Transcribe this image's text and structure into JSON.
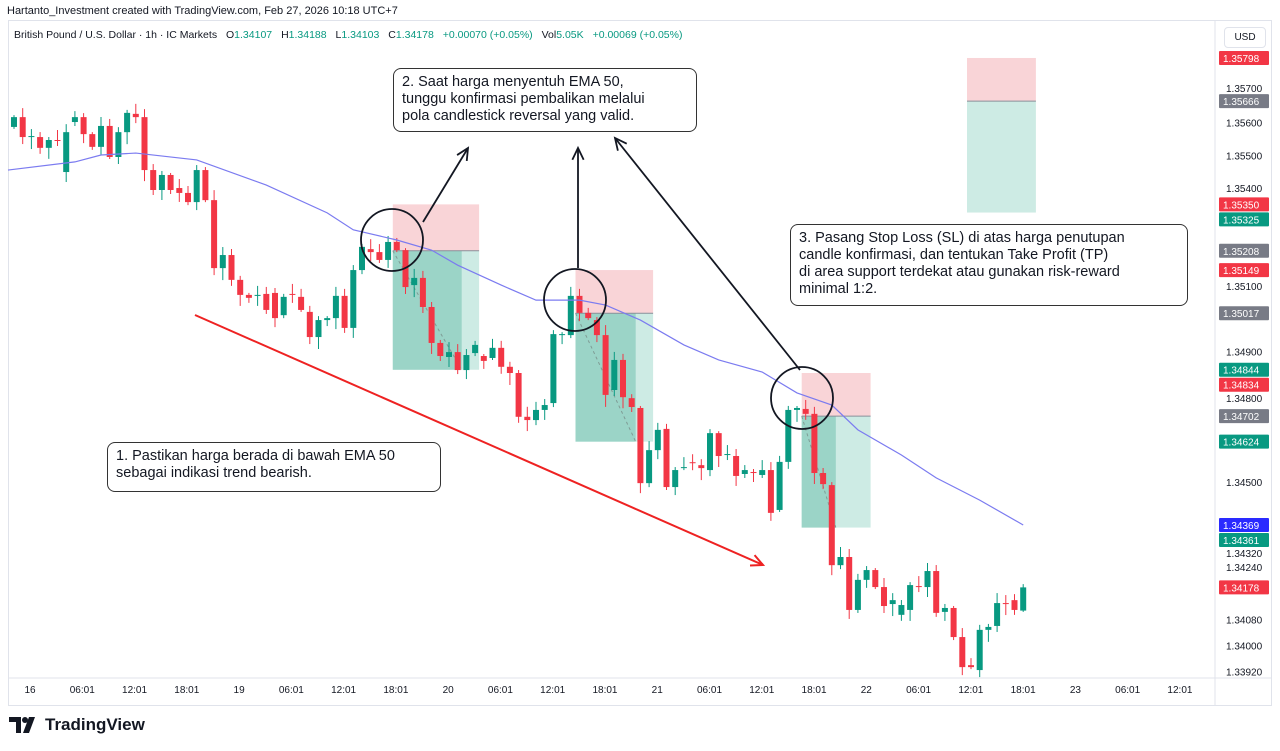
{
  "credit": "Hartanto_Investment created with TradingView.com, Feb 27, 2026 10:18 UTC+7",
  "legend": {
    "symbol": "British Pound / U.S. Dollar · 1h · IC Markets",
    "o_label": "O",
    "o": "1.34107",
    "h_label": "H",
    "h": "1.34188",
    "l_label": "L",
    "l": "1.34103",
    "c_label": "C",
    "c": "1.34178",
    "change": "+0.00070 (+0.05%)",
    "vol_label": "Vol",
    "vol": "5.05K",
    "vol_change": "+0.00069 (+0.05%)"
  },
  "currency": "USD",
  "logo": "TradingView",
  "callouts": {
    "step1": [
      "1. Pastikan harga berada di bawah EMA 50",
      "sebagai indikasi trend bearish."
    ],
    "step2": [
      "2. Saat harga menyentuh EMA 50,",
      "tunggu konfirmasi pembalikan melalui",
      "pola candlestick reversal yang valid."
    ],
    "step3": [
      "3. Pasang Stop Loss (SL) di atas harga penutupan",
      "candle konfirmasi, dan tentukan Take Profit (TP)",
      "di area support terdekat atau gunakan risk-reward",
      "minimal 1:2."
    ]
  },
  "colors": {
    "up": "#089981",
    "down": "#f23645",
    "ema": "#7b7bf0",
    "trend": "#ee2222",
    "sl_zone": "#f9d4d7",
    "tp_zone": "#cdebe4",
    "tp_zone_dark": "#9bd4c7",
    "ema_badge": "#2a2aff",
    "entry_badge": "#787b86"
  },
  "chart_data": {
    "type": "candlestick",
    "timeframe": "1h",
    "x_tick_labels": [
      "16",
      "06:01",
      "12:01",
      "18:01",
      "19",
      "06:01",
      "12:01",
      "18:01",
      "20",
      "06:01",
      "12:01",
      "18:01",
      "21",
      "06:01",
      "12:01",
      "18:01",
      "22",
      "06:01",
      "12:01",
      "18:01",
      "23",
      "06:01",
      "12:01"
    ],
    "y_tick_labels": [
      "1.35700",
      "1.35600",
      "1.35500",
      "1.35400",
      "1.35100",
      "1.34900",
      "1.34800",
      "1.34500",
      "1.34320",
      "1.34240",
      "1.34080",
      "1.34000",
      "1.33920"
    ],
    "candles_open_close": [
      [
        1.35587,
        1.35617
      ],
      [
        1.35617,
        1.35556
      ],
      [
        1.35556,
        1.35559
      ],
      [
        1.35556,
        1.35523
      ],
      [
        1.35523,
        1.35547
      ],
      [
        1.35547,
        1.35544
      ],
      [
        1.35449,
        1.35571
      ],
      [
        1.35602,
        1.35617
      ],
      [
        1.35617,
        1.35565
      ],
      [
        1.35565,
        1.35526
      ],
      [
        1.35526,
        1.3559
      ],
      [
        1.3559,
        1.35495
      ],
      [
        1.35495,
        1.35571
      ],
      [
        1.35571,
        1.3563
      ],
      [
        1.35627,
        1.35617
      ],
      [
        1.35617,
        1.35455
      ],
      [
        1.35455,
        1.35394
      ],
      [
        1.35394,
        1.3544
      ],
      [
        1.3544,
        1.35394
      ],
      [
        1.354,
        1.35385
      ],
      [
        1.35385,
        1.35357
      ],
      [
        1.35357,
        1.35455
      ],
      [
        1.35455,
        1.35363
      ],
      [
        1.35363,
        1.35155
      ],
      [
        1.35155,
        1.35195
      ],
      [
        1.35195,
        1.35119
      ],
      [
        1.35119,
        1.35073
      ],
      [
        1.35073,
        1.35064
      ],
      [
        1.3507,
        1.35073
      ],
      [
        1.35076,
        1.35027
      ],
      [
        1.35079,
        1.35002
      ],
      [
        1.35011,
        1.35067
      ],
      [
        1.35076,
        1.35073
      ],
      [
        1.35067,
        1.35027
      ],
      [
        1.35021,
        1.34944
      ],
      [
        1.34944,
        1.34996
      ],
      [
        1.34996,
        1.35002
      ],
      [
        1.35002,
        1.3507
      ],
      [
        1.3507,
        1.34972
      ],
      [
        1.34972,
        1.35149
      ],
      [
        1.35149,
        1.3522
      ],
      [
        1.35213,
        1.35204
      ],
      [
        1.35204,
        1.3518
      ],
      [
        1.3518,
        1.35235
      ],
      [
        1.35235,
        1.3521
      ],
      [
        1.3521,
        1.35097
      ],
      [
        1.35103,
        1.35125
      ],
      [
        1.35125,
        1.35036
      ],
      [
        1.35036,
        1.34926
      ],
      [
        1.34926,
        1.34886
      ],
      [
        1.34883,
        1.34898
      ],
      [
        1.34898,
        1.34843
      ],
      [
        1.34843,
        1.34889
      ],
      [
        1.34895,
        1.3492
      ],
      [
        1.34886,
        1.34871
      ],
      [
        1.3488,
        1.34911
      ],
      [
        1.34911,
        1.34853
      ],
      [
        1.34853,
        1.34834
      ],
      [
        1.34834,
        1.347
      ],
      [
        1.347,
        1.3469
      ],
      [
        1.3469,
        1.34721
      ],
      [
        1.34721,
        1.34736
      ],
      [
        1.34742,
        1.34953
      ],
      [
        1.3495,
        1.34953
      ],
      [
        1.3495,
        1.3507
      ],
      [
        1.3507,
        1.35018
      ],
      [
        1.35018,
        1.35002
      ],
      [
        1.34996,
        1.3495
      ],
      [
        1.3495,
        1.34767
      ],
      [
        1.34782,
        1.34874
      ],
      [
        1.34874,
        1.3476
      ],
      [
        1.34757,
        1.3473
      ],
      [
        1.34727,
        1.34497
      ],
      [
        1.34497,
        1.34598
      ],
      [
        1.34598,
        1.3466
      ],
      [
        1.34663,
        1.34485
      ],
      [
        1.34485,
        1.34537
      ],
      [
        1.34543,
        1.34546
      ],
      [
        1.34561,
        1.34558
      ],
      [
        1.34552,
        1.34543
      ],
      [
        1.34537,
        1.3465
      ],
      [
        1.3465,
        1.3458
      ],
      [
        1.34583,
        1.34586
      ],
      [
        1.3458,
        1.34519
      ],
      [
        1.34525,
        1.34537
      ],
      [
        1.34531,
        1.34528
      ],
      [
        1.34522,
        1.34537
      ],
      [
        1.34537,
        1.34406
      ],
      [
        1.34415,
        1.34562
      ],
      [
        1.34562,
        1.34721
      ],
      [
        1.34721,
        1.34727
      ],
      [
        1.34724,
        1.34709
      ],
      [
        1.34709,
        1.34528
      ],
      [
        1.34528,
        1.34494
      ],
      [
        1.34491,
        1.34246
      ],
      [
        1.34246,
        1.34271
      ],
      [
        1.34271,
        1.34109
      ],
      [
        1.34109,
        1.34201
      ],
      [
        1.34201,
        1.34231
      ],
      [
        1.34231,
        1.34179
      ],
      [
        1.34179,
        1.34121
      ],
      [
        1.34127,
        1.34139
      ],
      [
        1.34094,
        1.34124
      ],
      [
        1.34109,
        1.34185
      ],
      [
        1.34182,
        1.34179
      ],
      [
        1.34179,
        1.34228
      ],
      [
        1.34228,
        1.341
      ],
      [
        1.34103,
        1.34115
      ],
      [
        1.34115,
        1.34026
      ],
      [
        1.34026,
        1.33934
      ],
      [
        1.3394,
        1.33934
      ],
      [
        1.33925,
        1.34048
      ],
      [
        1.34048,
        1.34057
      ],
      [
        1.3406,
        1.3413
      ],
      [
        1.3413,
        1.34127
      ],
      [
        1.34139,
        1.34109
      ],
      [
        1.34107,
        1.34178
      ]
    ],
    "last_candle_high_low": [
      1.34188,
      1.34103
    ],
    "ema50": {
      "name": "EMA 50",
      "points": [
        [
          0,
          1.35455
        ],
        [
          7,
          1.3548
        ],
        [
          10,
          1.35501
        ],
        [
          14,
          1.35507
        ],
        [
          21,
          1.35486
        ],
        [
          29,
          1.35409
        ],
        [
          36,
          1.35324
        ],
        [
          39,
          1.35272
        ],
        [
          44,
          1.35241
        ],
        [
          48,
          1.3521
        ],
        [
          51,
          1.35164
        ],
        [
          56,
          1.35103
        ],
        [
          60,
          1.35057
        ],
        [
          65,
          1.35057
        ],
        [
          68,
          1.35042
        ],
        [
          72,
          1.34996
        ],
        [
          77,
          1.3492
        ],
        [
          81,
          1.34874
        ],
        [
          86,
          1.34837
        ],
        [
          90,
          1.34773
        ],
        [
          94,
          1.34736
        ],
        [
          97,
          1.3466
        ],
        [
          102,
          1.34583
        ],
        [
          106,
          1.34513
        ],
        [
          111,
          1.34445
        ],
        [
          116,
          1.34369
        ]
      ]
    },
    "short_positions": [
      {
        "start": 44,
        "end": 53,
        "profit_end": 51,
        "stop_loss": 1.3535,
        "entry": 1.35208,
        "take_profit": 1.34844
      },
      {
        "start": 65,
        "end": 73,
        "profit_end": 71,
        "stop_loss": 1.35149,
        "entry": 1.35017,
        "take_profit": 1.34624
      },
      {
        "start": 91,
        "end": 98,
        "profit_end": 94,
        "stop_loss": 1.34834,
        "entry": 1.34702,
        "take_profit": 1.34361
      },
      {
        "start": 110,
        "end": 117,
        "profit_end": 117,
        "stop_loss": 1.35798,
        "entry": 1.35666,
        "take_profit": 1.35325
      }
    ],
    "price_badges": [
      {
        "value": "1.35798",
        "kind": "down"
      },
      {
        "value": "1.35666",
        "kind": "entry"
      },
      {
        "value": "1.35350",
        "kind": "down"
      },
      {
        "value": "1.35325",
        "kind": "up"
      },
      {
        "value": "1.35208",
        "kind": "entry"
      },
      {
        "value": "1.35149",
        "kind": "down"
      },
      {
        "value": "1.35017",
        "kind": "entry"
      },
      {
        "value": "1.34844",
        "kind": "up"
      },
      {
        "value": "1.34834",
        "kind": "down"
      },
      {
        "value": "1.34702",
        "kind": "entry"
      },
      {
        "value": "1.34624",
        "kind": "up"
      },
      {
        "value": "1.34369",
        "kind": "ema"
      },
      {
        "value": "1.34361",
        "kind": "up"
      },
      {
        "value": "1.34178",
        "kind": "down"
      }
    ]
  }
}
